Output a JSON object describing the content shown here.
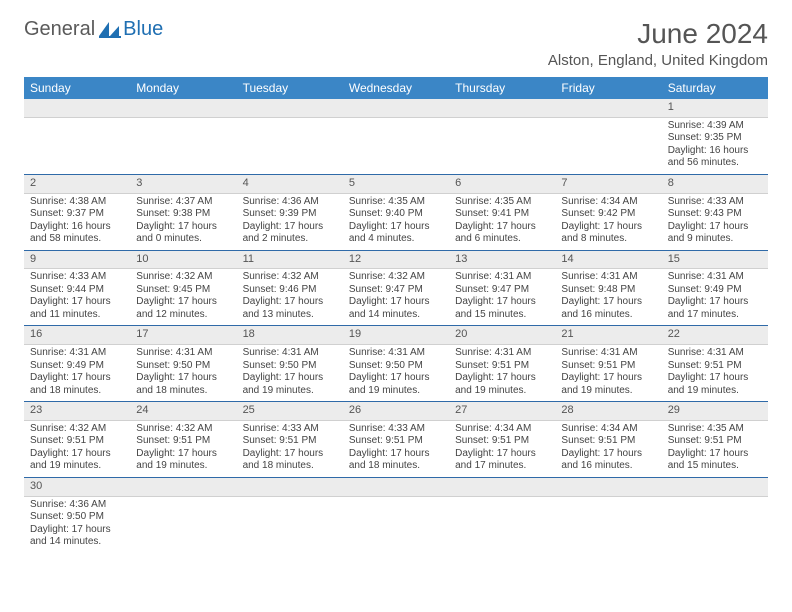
{
  "brand": {
    "name1": "General",
    "name2": "Blue"
  },
  "title": "June 2024",
  "location": "Alston, England, United Kingdom",
  "colors": {
    "header_bg": "#3b86c6",
    "header_text": "#ffffff",
    "daynum_bg": "#ececec",
    "week_border": "#2f6aa8",
    "text": "#444444",
    "title_text": "#555555",
    "brand_gray": "#5a5a5a",
    "brand_blue": "#1f6fb2"
  },
  "day_headers": [
    "Sunday",
    "Monday",
    "Tuesday",
    "Wednesday",
    "Thursday",
    "Friday",
    "Saturday"
  ],
  "weeks": [
    [
      {
        "n": "",
        "sr": "",
        "ss": "",
        "dl": ""
      },
      {
        "n": "",
        "sr": "",
        "ss": "",
        "dl": ""
      },
      {
        "n": "",
        "sr": "",
        "ss": "",
        "dl": ""
      },
      {
        "n": "",
        "sr": "",
        "ss": "",
        "dl": ""
      },
      {
        "n": "",
        "sr": "",
        "ss": "",
        "dl": ""
      },
      {
        "n": "",
        "sr": "",
        "ss": "",
        "dl": ""
      },
      {
        "n": "1",
        "sr": "Sunrise: 4:39 AM",
        "ss": "Sunset: 9:35 PM",
        "dl": "Daylight: 16 hours and 56 minutes."
      }
    ],
    [
      {
        "n": "2",
        "sr": "Sunrise: 4:38 AM",
        "ss": "Sunset: 9:37 PM",
        "dl": "Daylight: 16 hours and 58 minutes."
      },
      {
        "n": "3",
        "sr": "Sunrise: 4:37 AM",
        "ss": "Sunset: 9:38 PM",
        "dl": "Daylight: 17 hours and 0 minutes."
      },
      {
        "n": "4",
        "sr": "Sunrise: 4:36 AM",
        "ss": "Sunset: 9:39 PM",
        "dl": "Daylight: 17 hours and 2 minutes."
      },
      {
        "n": "5",
        "sr": "Sunrise: 4:35 AM",
        "ss": "Sunset: 9:40 PM",
        "dl": "Daylight: 17 hours and 4 minutes."
      },
      {
        "n": "6",
        "sr": "Sunrise: 4:35 AM",
        "ss": "Sunset: 9:41 PM",
        "dl": "Daylight: 17 hours and 6 minutes."
      },
      {
        "n": "7",
        "sr": "Sunrise: 4:34 AM",
        "ss": "Sunset: 9:42 PM",
        "dl": "Daylight: 17 hours and 8 minutes."
      },
      {
        "n": "8",
        "sr": "Sunrise: 4:33 AM",
        "ss": "Sunset: 9:43 PM",
        "dl": "Daylight: 17 hours and 9 minutes."
      }
    ],
    [
      {
        "n": "9",
        "sr": "Sunrise: 4:33 AM",
        "ss": "Sunset: 9:44 PM",
        "dl": "Daylight: 17 hours and 11 minutes."
      },
      {
        "n": "10",
        "sr": "Sunrise: 4:32 AM",
        "ss": "Sunset: 9:45 PM",
        "dl": "Daylight: 17 hours and 12 minutes."
      },
      {
        "n": "11",
        "sr": "Sunrise: 4:32 AM",
        "ss": "Sunset: 9:46 PM",
        "dl": "Daylight: 17 hours and 13 minutes."
      },
      {
        "n": "12",
        "sr": "Sunrise: 4:32 AM",
        "ss": "Sunset: 9:47 PM",
        "dl": "Daylight: 17 hours and 14 minutes."
      },
      {
        "n": "13",
        "sr": "Sunrise: 4:31 AM",
        "ss": "Sunset: 9:47 PM",
        "dl": "Daylight: 17 hours and 15 minutes."
      },
      {
        "n": "14",
        "sr": "Sunrise: 4:31 AM",
        "ss": "Sunset: 9:48 PM",
        "dl": "Daylight: 17 hours and 16 minutes."
      },
      {
        "n": "15",
        "sr": "Sunrise: 4:31 AM",
        "ss": "Sunset: 9:49 PM",
        "dl": "Daylight: 17 hours and 17 minutes."
      }
    ],
    [
      {
        "n": "16",
        "sr": "Sunrise: 4:31 AM",
        "ss": "Sunset: 9:49 PM",
        "dl": "Daylight: 17 hours and 18 minutes."
      },
      {
        "n": "17",
        "sr": "Sunrise: 4:31 AM",
        "ss": "Sunset: 9:50 PM",
        "dl": "Daylight: 17 hours and 18 minutes."
      },
      {
        "n": "18",
        "sr": "Sunrise: 4:31 AM",
        "ss": "Sunset: 9:50 PM",
        "dl": "Daylight: 17 hours and 19 minutes."
      },
      {
        "n": "19",
        "sr": "Sunrise: 4:31 AM",
        "ss": "Sunset: 9:50 PM",
        "dl": "Daylight: 17 hours and 19 minutes."
      },
      {
        "n": "20",
        "sr": "Sunrise: 4:31 AM",
        "ss": "Sunset: 9:51 PM",
        "dl": "Daylight: 17 hours and 19 minutes."
      },
      {
        "n": "21",
        "sr": "Sunrise: 4:31 AM",
        "ss": "Sunset: 9:51 PM",
        "dl": "Daylight: 17 hours and 19 minutes."
      },
      {
        "n": "22",
        "sr": "Sunrise: 4:31 AM",
        "ss": "Sunset: 9:51 PM",
        "dl": "Daylight: 17 hours and 19 minutes."
      }
    ],
    [
      {
        "n": "23",
        "sr": "Sunrise: 4:32 AM",
        "ss": "Sunset: 9:51 PM",
        "dl": "Daylight: 17 hours and 19 minutes."
      },
      {
        "n": "24",
        "sr": "Sunrise: 4:32 AM",
        "ss": "Sunset: 9:51 PM",
        "dl": "Daylight: 17 hours and 19 minutes."
      },
      {
        "n": "25",
        "sr": "Sunrise: 4:33 AM",
        "ss": "Sunset: 9:51 PM",
        "dl": "Daylight: 17 hours and 18 minutes."
      },
      {
        "n": "26",
        "sr": "Sunrise: 4:33 AM",
        "ss": "Sunset: 9:51 PM",
        "dl": "Daylight: 17 hours and 18 minutes."
      },
      {
        "n": "27",
        "sr": "Sunrise: 4:34 AM",
        "ss": "Sunset: 9:51 PM",
        "dl": "Daylight: 17 hours and 17 minutes."
      },
      {
        "n": "28",
        "sr": "Sunrise: 4:34 AM",
        "ss": "Sunset: 9:51 PM",
        "dl": "Daylight: 17 hours and 16 minutes."
      },
      {
        "n": "29",
        "sr": "Sunrise: 4:35 AM",
        "ss": "Sunset: 9:51 PM",
        "dl": "Daylight: 17 hours and 15 minutes."
      }
    ],
    [
      {
        "n": "30",
        "sr": "Sunrise: 4:36 AM",
        "ss": "Sunset: 9:50 PM",
        "dl": "Daylight: 17 hours and 14 minutes."
      },
      {
        "n": "",
        "sr": "",
        "ss": "",
        "dl": ""
      },
      {
        "n": "",
        "sr": "",
        "ss": "",
        "dl": ""
      },
      {
        "n": "",
        "sr": "",
        "ss": "",
        "dl": ""
      },
      {
        "n": "",
        "sr": "",
        "ss": "",
        "dl": ""
      },
      {
        "n": "",
        "sr": "",
        "ss": "",
        "dl": ""
      },
      {
        "n": "",
        "sr": "",
        "ss": "",
        "dl": ""
      }
    ]
  ]
}
